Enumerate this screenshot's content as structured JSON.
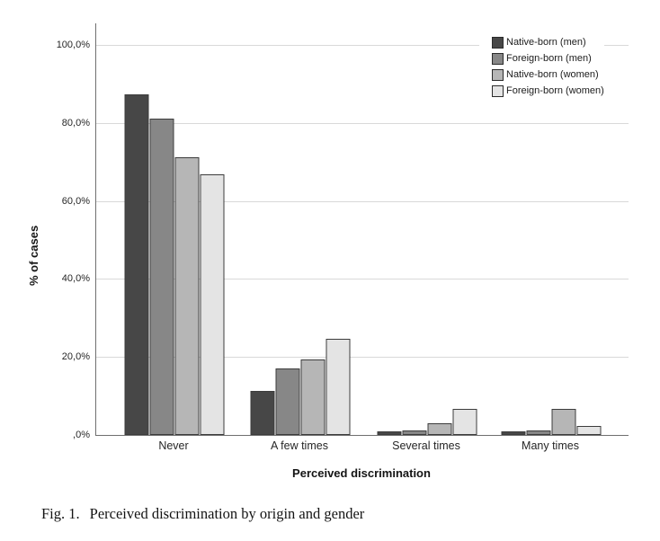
{
  "figure": {
    "caption_label": "Fig. 1.",
    "caption_text": "Perceived discrimination by origin and gender"
  },
  "chart_data": {
    "type": "bar",
    "title": "",
    "xlabel": "Perceived discrimination",
    "ylabel": "% of cases",
    "categories": [
      "Never",
      "A few times",
      "Several times",
      "Many times"
    ],
    "series": [
      {
        "name": "Native-born (men)",
        "color": "#474747",
        "values": [
          87.3,
          11.3,
          0.9,
          0.9
        ]
      },
      {
        "name": "Foreign-born (men)",
        "color": "#878787",
        "values": [
          81.0,
          17.0,
          1.1,
          1.1
        ]
      },
      {
        "name": "Native-born (women)",
        "color": "#b6b6b6",
        "values": [
          71.2,
          19.4,
          3.1,
          6.6
        ]
      },
      {
        "name": "Foreign-born (women)",
        "color": "#e4e4e4",
        "values": [
          66.9,
          24.6,
          6.7,
          2.2
        ]
      }
    ],
    "ylim": [
      0,
      100
    ],
    "ytick_labels": [
      "100,0%",
      "80,0%",
      "60,0%",
      "40,0%",
      "20,0%",
      ",0%"
    ],
    "ytick_values": [
      100,
      80,
      60,
      40,
      20,
      0
    ],
    "grid": true,
    "legend_position": "top-right",
    "colors": {
      "axis": "#6f6f6f",
      "gridline": "#d9d9d9",
      "bar_border": "#3c3c3c",
      "background": "#ffffff"
    }
  }
}
